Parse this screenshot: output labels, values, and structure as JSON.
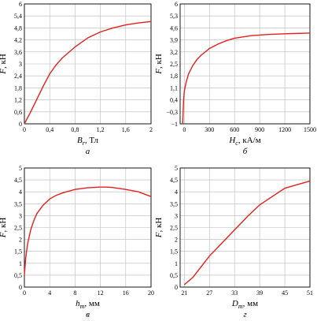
{
  "chart_data": [
    {
      "type": "line",
      "panel_caption": "а",
      "xlabel_symbol": "B",
      "xlabel_sub": "r",
      "xlabel_unit": ", Тл",
      "ylabel_symbol": "F",
      "ylabel_unit": ", кН",
      "xlim": [
        0,
        2
      ],
      "ylim": [
        0,
        6
      ],
      "xticks": [
        0,
        0.4,
        0.8,
        1.2,
        1.6,
        2
      ],
      "xtick_labels": [
        "0",
        "0,4",
        "0,8",
        "1,2",
        "1,6",
        "2"
      ],
      "yticks": [
        0,
        0.6,
        1.2,
        1.8,
        2.4,
        3,
        3.6,
        4.2,
        4.8,
        5.4,
        6
      ],
      "ytick_labels": [
        "0",
        "0,6",
        "1,2",
        "1,8",
        "2,4",
        "3",
        "3,6",
        "4,2",
        "4,8",
        "5,4",
        "6"
      ],
      "grid": true,
      "color": "#e3201b",
      "x": [
        0,
        0.05,
        0.1,
        0.2,
        0.3,
        0.4,
        0.5,
        0.6,
        0.8,
        1.0,
        1.2,
        1.4,
        1.6,
        1.8,
        2.0
      ],
      "y": [
        0,
        0.3,
        0.6,
        1.25,
        1.9,
        2.5,
        2.95,
        3.3,
        3.85,
        4.3,
        4.6,
        4.8,
        4.95,
        5.05,
        5.12
      ]
    },
    {
      "type": "line",
      "panel_caption": "б",
      "xlabel_symbol": "H",
      "xlabel_sub": "c",
      "xlabel_unit": ", кА/м",
      "ylabel_symbol": "F",
      "ylabel_unit": ", кН",
      "xlim": [
        -50,
        1500
      ],
      "ylim": [
        -1,
        6
      ],
      "xticks": [
        0,
        300,
        600,
        900,
        1200,
        1500
      ],
      "xtick_labels": [
        "0",
        "300",
        "600",
        "900",
        "1200",
        "1500"
      ],
      "yticks": [
        -1,
        -0.3,
        0.4,
        1.1,
        1.8,
        2.5,
        3.2,
        3.9,
        4.6,
        5.3,
        6
      ],
      "ytick_labels": [
        "−1",
        "−0,3",
        "0,4",
        "1,1",
        "1,8",
        "2,5",
        "3,2",
        "3,9",
        "4,6",
        "5,3",
        "6"
      ],
      "grid": true,
      "color": "#e3201b",
      "x": [
        -20,
        -10,
        0,
        20,
        50,
        100,
        150,
        200,
        300,
        400,
        500,
        600,
        800,
        1000,
        1200,
        1500
      ],
      "y": [
        -1,
        0.3,
        0.9,
        1.4,
        1.9,
        2.4,
        2.75,
        3.0,
        3.4,
        3.65,
        3.85,
        4.0,
        4.15,
        4.22,
        4.26,
        4.3
      ]
    },
    {
      "type": "line",
      "panel_caption": "в",
      "xlabel_symbol": "h",
      "xlabel_sub": "m",
      "xlabel_unit": ", мм",
      "ylabel_symbol": "F",
      "ylabel_unit": ", кН",
      "xlim": [
        0,
        20
      ],
      "ylim": [
        0,
        5
      ],
      "xticks": [
        0,
        4,
        8,
        12,
        16,
        20
      ],
      "xtick_labels": [
        "0",
        "4",
        "8",
        "12",
        "16",
        "20"
      ],
      "yticks": [
        0,
        0.5,
        1,
        1.5,
        2,
        2.5,
        3,
        3.5,
        4,
        4.5,
        5
      ],
      "ytick_labels": [
        "0",
        "0,5",
        "1",
        "1,5",
        "2",
        "2,5",
        "3",
        "3,5",
        "4",
        "4,5",
        "5"
      ],
      "grid": true,
      "color": "#e3201b",
      "x": [
        0,
        0.2,
        0.5,
        1,
        1.5,
        2,
        3,
        4,
        5,
        6,
        8,
        10,
        12,
        13,
        14,
        16,
        18,
        20
      ],
      "y": [
        0.5,
        1.2,
        1.8,
        2.4,
        2.8,
        3.1,
        3.45,
        3.7,
        3.85,
        3.95,
        4.1,
        4.17,
        4.2,
        4.2,
        4.18,
        4.1,
        4.0,
        3.8
      ]
    },
    {
      "type": "line",
      "panel_caption": "г",
      "xlabel_symbol": "D",
      "xlabel_sub": "m",
      "xlabel_unit": ", мм",
      "ylabel_symbol": "F",
      "ylabel_unit": ", кН",
      "xlim": [
        20,
        51
      ],
      "ylim": [
        0,
        5
      ],
      "xticks": [
        21,
        27,
        33,
        39,
        45,
        51
      ],
      "xtick_labels": [
        "21",
        "27",
        "33",
        "39",
        "45",
        "51"
      ],
      "yticks": [
        0,
        0.5,
        1,
        1.5,
        2,
        2.5,
        3,
        3.5,
        4,
        4.5,
        5
      ],
      "ytick_labels": [
        "0",
        "0,5",
        "1",
        "1,5",
        "2",
        "2,5",
        "3",
        "3,5",
        "4",
        "4,5",
        "5"
      ],
      "grid": true,
      "color": "#e3201b",
      "x": [
        21,
        23,
        25,
        27,
        30,
        33,
        36,
        39,
        42,
        45,
        48,
        51
      ],
      "y": [
        0.1,
        0.4,
        0.85,
        1.3,
        1.85,
        2.4,
        2.95,
        3.45,
        3.8,
        4.15,
        4.3,
        4.45
      ]
    }
  ]
}
